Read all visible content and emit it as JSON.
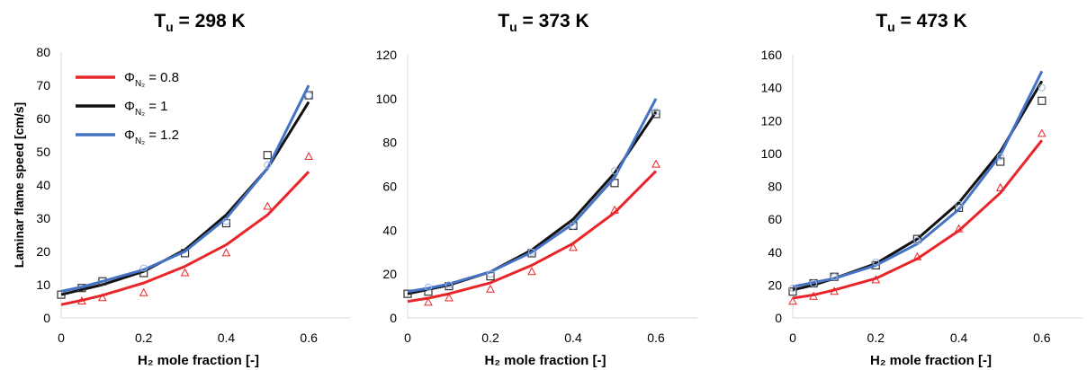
{
  "ylabel": "Laminar flame speed [cm/s]",
  "legend": [
    {
      "label_main": "Φ",
      "label_sub": "N₂",
      "label_value": " = 0.8",
      "color": "#e8262a"
    },
    {
      "label_main": "Φ",
      "label_sub": "N₂",
      "label_value": " = 1",
      "color": "#111111"
    },
    {
      "label_main": "Φ",
      "label_sub": "N₂",
      "label_value": " = 1.2",
      "color": "#4472c4"
    }
  ],
  "colors": {
    "red": "#e8262a",
    "black": "#111111",
    "blue": "#4472c4",
    "light_blue": "#9bb7e0"
  },
  "chart_data": [
    {
      "type": "line",
      "title_main": "T",
      "title_sub": "u",
      "title_rest": " = 298 K",
      "xlabel": "H₂ mole fraction [-]",
      "xlim": [
        0,
        0.7
      ],
      "ylim": [
        0,
        80
      ],
      "xticks": [
        "0",
        "0.2",
        "0.4",
        "0.6"
      ],
      "yticks": [
        "0",
        "10",
        "20",
        "30",
        "40",
        "50",
        "60",
        "70",
        "80"
      ],
      "show_legend": true,
      "series": [
        {
          "name": "ΦN2 = 0.8",
          "color": "#e8262a",
          "line": {
            "x": [
              0,
              0.05,
              0.1,
              0.2,
              0.3,
              0.4,
              0.5,
              0.6
            ],
            "y": [
              4,
              5.3,
              6.8,
              10.5,
              15.5,
              22,
              31,
              44
            ]
          },
          "markers": {
            "shape": "triangle",
            "x": [
              0.05,
              0.1,
              0.2,
              0.3,
              0.4,
              0.5,
              0.6
            ],
            "y": [
              5,
              6,
              7.5,
              13.5,
              19.5,
              33.5,
              48.5
            ]
          }
        },
        {
          "name": "ΦN2 = 1",
          "color": "#111111",
          "line": {
            "x": [
              0,
              0.05,
              0.1,
              0.2,
              0.3,
              0.4,
              0.5,
              0.6
            ],
            "y": [
              7,
              8.5,
              10,
              14,
              20.5,
              31,
              45,
              65
            ]
          },
          "markers": {
            "shape": "square",
            "x": [
              0,
              0.05,
              0.1,
              0.2,
              0.3,
              0.4,
              0.5,
              0.6
            ],
            "y": [
              7,
              9,
              11,
              13.5,
              19.5,
              28.5,
              49,
              67
            ]
          }
        },
        {
          "name": "ΦN2 = 1.2",
          "color": "#4472c4",
          "line": {
            "x": [
              0,
              0.05,
              0.1,
              0.2,
              0.3,
              0.4,
              0.5,
              0.6
            ],
            "y": [
              8,
              9.3,
              11,
              14.5,
              20,
              30,
              45,
              70
            ]
          },
          "markers": {
            "shape": "circle",
            "x": [
              0.2,
              0.4,
              0.5,
              0.6
            ],
            "y": [
              15,
              29,
              46,
              67
            ]
          }
        }
      ]
    },
    {
      "type": "line",
      "title_main": "T",
      "title_sub": "u",
      "title_rest": " = 373 K",
      "xlabel": "H₂ mole fraction [-]",
      "xlim": [
        0,
        0.7
      ],
      "ylim": [
        0,
        120
      ],
      "xticks": [
        "0",
        "0.2",
        "0.4",
        "0.6"
      ],
      "yticks": [
        "0",
        "20",
        "40",
        "60",
        "80",
        "100",
        "120"
      ],
      "show_legend": false,
      "series": [
        {
          "name": "ΦN2 = 0.8",
          "color": "#e8262a",
          "line": {
            "x": [
              0,
              0.05,
              0.1,
              0.2,
              0.3,
              0.4,
              0.5,
              0.6
            ],
            "y": [
              7.5,
              9,
              11,
              16,
              24,
              34,
              48,
              67
            ]
          },
          "markers": {
            "shape": "triangle",
            "x": [
              0.05,
              0.1,
              0.2,
              0.3,
              0.4,
              0.5,
              0.6
            ],
            "y": [
              7,
              9,
              13,
              21,
              32,
              49,
              70
            ]
          }
        },
        {
          "name": "ΦN2 = 1",
          "color": "#111111",
          "line": {
            "x": [
              0,
              0.05,
              0.1,
              0.2,
              0.3,
              0.4,
              0.5,
              0.6
            ],
            "y": [
              11,
              13,
              15,
              21,
              31,
              45,
              66,
              94
            ]
          },
          "markers": {
            "shape": "square",
            "x": [
              0,
              0.05,
              0.1,
              0.2,
              0.3,
              0.4,
              0.5,
              0.6
            ],
            "y": [
              11,
              12,
              14.5,
              19,
              29.5,
              42,
              61.5,
              93
            ]
          }
        },
        {
          "name": "ΦN2 = 1.2",
          "color": "#4472c4",
          "line": {
            "x": [
              0,
              0.05,
              0.1,
              0.2,
              0.3,
              0.4,
              0.5,
              0.6
            ],
            "y": [
              12,
              13.5,
              15.5,
              21,
              30,
              43,
              64,
              100
            ]
          },
          "markers": {
            "shape": "circle",
            "x": [
              0.05,
              0.1,
              0.2,
              0.3,
              0.4,
              0.5,
              0.6
            ],
            "y": [
              14,
              15,
              20,
              30,
              42,
              67,
              94
            ]
          }
        }
      ]
    },
    {
      "type": "line",
      "title_main": "T",
      "title_sub": "u",
      "title_rest": " = 473 K",
      "xlabel": "H₂ mole fraction [-]",
      "xlim": [
        0,
        0.7
      ],
      "ylim": [
        0,
        160
      ],
      "xticks": [
        "0",
        "0.2",
        "0.4",
        "0.6"
      ],
      "yticks": [
        "0",
        "20",
        "40",
        "60",
        "80",
        "100",
        "120",
        "140",
        "160"
      ],
      "show_legend": false,
      "series": [
        {
          "name": "ΦN2 = 0.8",
          "color": "#e8262a",
          "line": {
            "x": [
              0,
              0.05,
              0.1,
              0.2,
              0.3,
              0.4,
              0.5,
              0.6
            ],
            "y": [
              12,
              14,
              17,
              24,
              36,
              53,
              76,
              108
            ]
          },
          "markers": {
            "shape": "triangle",
            "x": [
              0,
              0.05,
              0.1,
              0.2,
              0.3,
              0.4,
              0.5,
              0.6
            ],
            "y": [
              10,
              13,
              16,
              23,
              37,
              54,
              79,
              112
            ]
          }
        },
        {
          "name": "ΦN2 = 1",
          "color": "#111111",
          "line": {
            "x": [
              0,
              0.05,
              0.1,
              0.2,
              0.3,
              0.4,
              0.5,
              0.6
            ],
            "y": [
              17,
              20,
              24,
              33,
              48,
              70,
              101,
              144
            ]
          },
          "markers": {
            "shape": "square",
            "x": [
              0,
              0.05,
              0.1,
              0.2,
              0.3,
              0.4,
              0.5,
              0.6
            ],
            "y": [
              16,
              21,
              25,
              32,
              48,
              67,
              95,
              132
            ]
          }
        },
        {
          "name": "ΦN2 = 1.2",
          "color": "#4472c4",
          "line": {
            "x": [
              0,
              0.05,
              0.1,
              0.2,
              0.3,
              0.4,
              0.5,
              0.6
            ],
            "y": [
              19,
              21.5,
              24,
              32,
              45,
              66,
              99,
              150
            ]
          },
          "markers": {
            "shape": "circle",
            "x": [
              0,
              0.05,
              0.1,
              0.2,
              0.3,
              0.4,
              0.5,
              0.6
            ],
            "y": [
              18,
              21,
              25,
              34,
              47,
              69,
              98,
              140
            ]
          }
        }
      ]
    }
  ]
}
